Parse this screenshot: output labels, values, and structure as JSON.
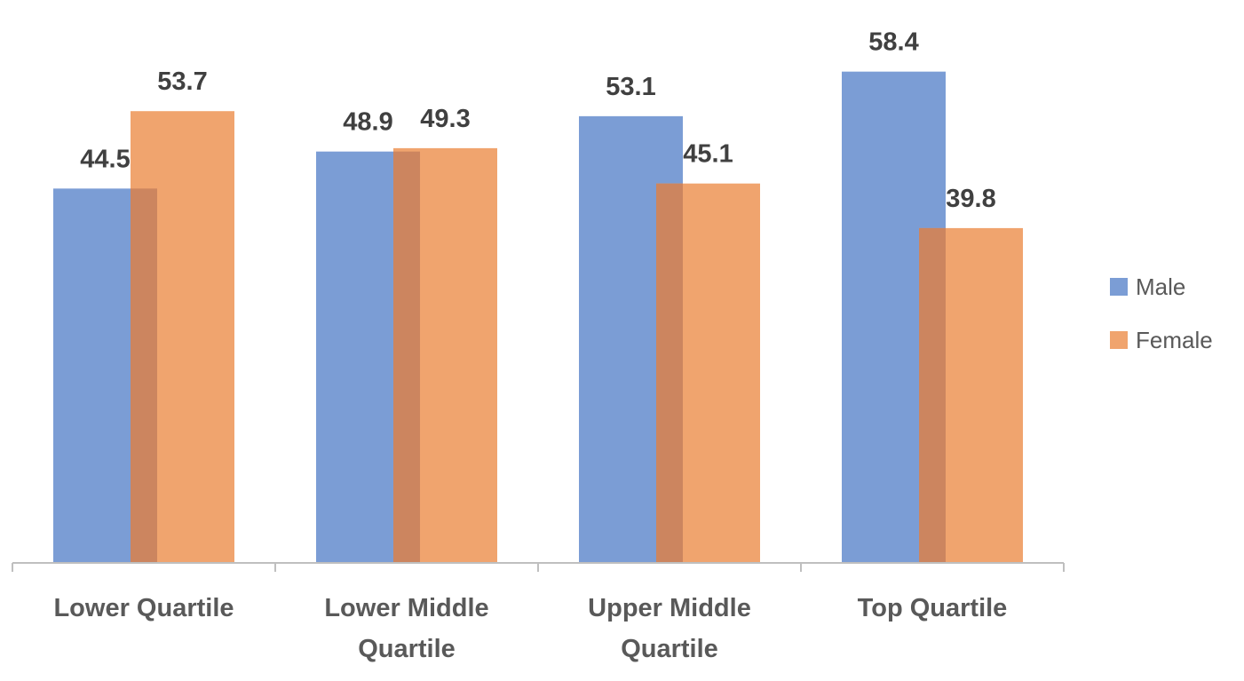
{
  "chart_data": {
    "type": "bar",
    "categories": [
      [
        "Lower Quartile"
      ],
      [
        "Lower Middle",
        "Quartile"
      ],
      [
        "Upper Middle",
        "Quartile"
      ],
      [
        "Top Quartile"
      ]
    ],
    "series": [
      {
        "name": "Male",
        "color": "#7b9dd5",
        "values": [
          44.5,
          48.9,
          53.1,
          58.4
        ]
      },
      {
        "name": "Female",
        "color": "#f0a46e",
        "values": [
          53.7,
          49.3,
          45.1,
          39.8
        ]
      }
    ],
    "overlap_color": "#cc855f",
    "axis_color": "#bfbfbf",
    "ylim": [
      0,
      60
    ],
    "grid": false,
    "legend_position": "right"
  }
}
